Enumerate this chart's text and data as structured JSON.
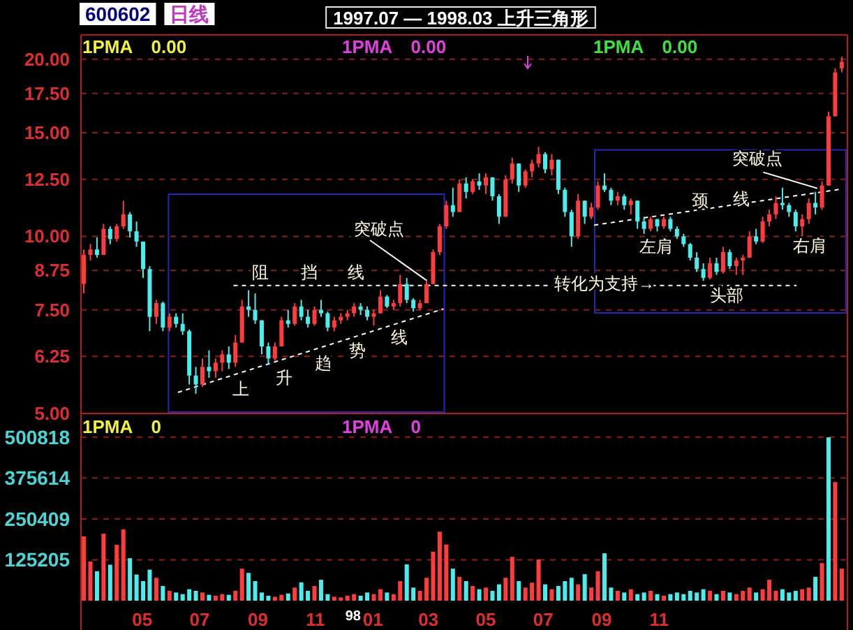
{
  "chart_data": [
    {
      "type": "candlestick",
      "title": "1997.07 — 1998.03 上升三角形",
      "x": [
        "1997-02-28",
        "1997-03-07",
        "1997-03-14",
        "1997-03-21",
        "1997-03-28",
        "1997-04-04",
        "1997-04-11",
        "1997-04-18",
        "1997-04-25",
        "1997-05-02",
        "1997-05-09",
        "1997-05-16",
        "1997-05-23",
        "1997-05-30",
        "1997-06-06",
        "1997-06-13",
        "1997-06-20",
        "1997-06-27",
        "1997-07-04",
        "1997-07-11",
        "1997-07-18",
        "1997-07-25",
        "1997-08-01",
        "1997-08-08",
        "1997-08-15",
        "1997-08-22",
        "1997-08-29",
        "1997-09-05",
        "1997-09-12",
        "1997-09-19",
        "1997-09-26",
        "1997-10-03",
        "1997-10-10",
        "1997-10-17",
        "1997-10-24",
        "1997-10-31",
        "1997-11-07",
        "1997-11-14",
        "1997-11-21",
        "1997-11-28",
        "1997-12-05",
        "1997-12-12",
        "1997-12-19",
        "1997-12-26",
        "1998-01-02",
        "1998-01-09",
        "1998-01-16",
        "1998-01-23",
        "1998-01-30",
        "1998-02-06",
        "1998-02-13",
        "1998-02-20",
        "1998-02-27",
        "1998-03-06",
        "1998-03-13",
        "1998-03-20",
        "1998-03-27",
        "1998-04-03",
        "1998-04-10",
        "1998-04-17",
        "1998-04-24",
        "1998-05-01",
        "1998-05-08",
        "1998-05-15",
        "1998-05-22",
        "1998-05-29",
        "1998-06-05",
        "1998-06-12",
        "1998-06-19",
        "1998-06-26",
        "1998-07-03",
        "1998-07-10",
        "1998-07-17",
        "1998-07-24",
        "1998-07-31",
        "1998-08-07",
        "1998-08-14",
        "1998-08-21",
        "1998-08-28",
        "1998-09-04",
        "1998-09-11",
        "1998-09-18",
        "1998-09-25",
        "1998-10-02",
        "1998-10-09",
        "1998-10-16",
        "1998-10-23",
        "1998-10-30",
        "1998-11-06",
        "1998-11-13",
        "1998-11-20",
        "1998-11-27",
        "1998-12-04",
        "1998-12-11",
        "1998-12-18",
        "1998-12-25",
        "1999-01-01",
        "1999-01-08",
        "1999-01-15",
        "1999-01-22",
        "1999-01-29",
        "1999-02-05",
        "1999-02-12",
        "1999-02-19",
        "1999-02-26",
        "1999-03-05",
        "1999-03-12",
        "1999-03-19",
        "1999-03-26",
        "1999-04-02",
        "1999-04-09",
        "1999-04-16",
        "1999-04-23",
        "1999-04-30",
        "1999-05-07",
        "1999-05-14"
      ],
      "ohlc": [
        [
          8.3,
          9.5,
          8.0,
          9.3
        ],
        [
          9.3,
          9.7,
          9.1,
          9.5
        ],
        [
          9.5,
          9.96,
          9.2,
          9.3
        ],
        [
          9.3,
          10.5,
          9.3,
          10.3
        ],
        [
          10.3,
          10.4,
          9.7,
          9.9
        ],
        [
          9.9,
          10.5,
          9.8,
          10.4
        ],
        [
          10.4,
          11.5,
          10.3,
          10.9
        ],
        [
          10.9,
          11.0,
          9.96,
          10.2
        ],
        [
          10.2,
          10.6,
          9.6,
          9.8
        ],
        [
          9.8,
          9.8,
          8.5,
          8.8
        ],
        [
          8.8,
          8.9,
          6.9,
          7.3
        ],
        [
          7.3,
          7.8,
          7.1,
          7.7
        ],
        [
          7.7,
          7.75,
          6.9,
          7.0
        ],
        [
          7.0,
          7.4,
          6.9,
          7.3
        ],
        [
          7.3,
          7.4,
          7.0,
          7.1
        ],
        [
          7.1,
          7.4,
          6.8,
          6.9
        ],
        [
          6.9,
          6.95,
          5.6,
          5.8
        ],
        [
          5.8,
          6.0,
          5.4,
          5.6
        ],
        [
          5.6,
          6.2,
          5.55,
          6.0
        ],
        [
          6.0,
          6.4,
          5.75,
          5.9
        ],
        [
          5.9,
          6.2,
          5.75,
          6.1
        ],
        [
          6.1,
          6.4,
          5.9,
          6.3
        ],
        [
          6.3,
          6.5,
          5.95,
          6.1
        ],
        [
          6.1,
          6.8,
          6.0,
          6.6
        ],
        [
          6.6,
          7.8,
          6.6,
          7.6
        ],
        [
          7.6,
          8.1,
          7.3,
          7.5
        ],
        [
          7.5,
          8.0,
          7.1,
          7.2
        ],
        [
          7.2,
          7.2,
          6.3,
          6.5
        ],
        [
          6.5,
          6.6,
          6.05,
          6.2
        ],
        [
          6.2,
          6.6,
          6.15,
          6.5
        ],
        [
          6.5,
          7.3,
          6.5,
          7.2
        ],
        [
          7.2,
          7.5,
          7.0,
          7.1
        ],
        [
          7.1,
          7.7,
          7.05,
          7.6
        ],
        [
          7.6,
          7.8,
          7.2,
          7.3
        ],
        [
          7.3,
          7.5,
          7.0,
          7.1
        ],
        [
          7.1,
          7.6,
          7.05,
          7.5
        ],
        [
          7.5,
          7.8,
          7.3,
          7.4
        ],
        [
          7.4,
          7.45,
          6.9,
          7.0
        ],
        [
          7.0,
          7.3,
          6.9,
          7.2
        ],
        [
          7.2,
          7.4,
          7.1,
          7.3
        ],
        [
          7.3,
          7.5,
          7.2,
          7.4
        ],
        [
          7.4,
          7.7,
          7.3,
          7.6
        ],
        [
          7.6,
          7.7,
          7.35,
          7.5
        ],
        [
          7.5,
          7.6,
          7.2,
          7.3
        ],
        [
          7.3,
          7.5,
          7.05,
          7.4
        ],
        [
          7.4,
          8.1,
          7.4,
          7.9
        ],
        [
          7.9,
          7.95,
          7.55,
          7.6
        ],
        [
          7.6,
          7.8,
          7.5,
          7.7
        ],
        [
          7.7,
          8.6,
          7.6,
          8.3
        ],
        [
          8.3,
          8.5,
          7.7,
          7.8
        ],
        [
          7.8,
          7.85,
          7.45,
          7.55
        ],
        [
          7.55,
          7.8,
          7.5,
          7.7
        ],
        [
          7.7,
          8.45,
          7.7,
          8.3
        ],
        [
          8.3,
          9.5,
          8.3,
          9.4
        ],
        [
          9.4,
          10.5,
          9.3,
          10.4
        ],
        [
          10.4,
          11.5,
          10.3,
          11.3
        ],
        [
          11.3,
          12.1,
          10.8,
          11.0
        ],
        [
          11.0,
          12.5,
          11.0,
          12.3
        ],
        [
          12.3,
          12.6,
          11.6,
          11.9
        ],
        [
          11.9,
          12.5,
          11.8,
          12.4
        ],
        [
          12.4,
          12.8,
          12.0,
          12.2
        ],
        [
          12.2,
          12.8,
          11.8,
          12.6
        ],
        [
          12.6,
          12.6,
          11.5,
          11.7
        ],
        [
          11.7,
          11.8,
          10.5,
          10.8
        ],
        [
          10.8,
          12.7,
          10.8,
          12.5
        ],
        [
          12.5,
          13.6,
          12.3,
          13.3
        ],
        [
          13.3,
          13.3,
          11.9,
          12.2
        ],
        [
          12.2,
          13.0,
          12.1,
          12.9
        ],
        [
          12.9,
          13.5,
          12.6,
          13.3
        ],
        [
          13.3,
          14.2,
          13.1,
          13.8
        ],
        [
          13.8,
          13.9,
          12.8,
          13.0
        ],
        [
          13.0,
          13.8,
          12.7,
          13.5
        ],
        [
          13.5,
          13.5,
          11.8,
          12.0
        ],
        [
          12.0,
          12.1,
          10.8,
          11.0
        ],
        [
          11.0,
          11.1,
          9.6,
          10.0
        ],
        [
          10.0,
          11.8,
          9.9,
          11.5
        ],
        [
          11.5,
          11.5,
          10.5,
          10.8
        ],
        [
          10.8,
          11.4,
          10.7,
          11.2
        ],
        [
          11.2,
          12.4,
          11.1,
          12.2
        ],
        [
          12.2,
          12.8,
          11.9,
          12.0
        ],
        [
          12.0,
          12.1,
          11.3,
          11.5
        ],
        [
          11.5,
          11.9,
          11.3,
          11.7
        ],
        [
          11.7,
          11.8,
          11.1,
          11.3
        ],
        [
          11.3,
          11.6,
          10.9,
          11.5
        ],
        [
          11.5,
          11.5,
          10.3,
          10.6
        ],
        [
          10.6,
          10.8,
          10.1,
          10.3
        ],
        [
          10.3,
          10.8,
          10.2,
          10.7
        ],
        [
          10.7,
          10.7,
          10.2,
          10.4
        ],
        [
          10.4,
          10.8,
          10.3,
          10.7
        ],
        [
          10.7,
          10.8,
          10.2,
          10.3
        ],
        [
          10.3,
          10.4,
          9.9,
          10.0
        ],
        [
          10.0,
          10.1,
          9.6,
          9.7
        ],
        [
          9.7,
          9.75,
          9.1,
          9.2
        ],
        [
          9.2,
          9.4,
          8.7,
          8.8
        ],
        [
          8.8,
          9.0,
          8.4,
          8.5
        ],
        [
          8.5,
          9.2,
          8.45,
          9.0
        ],
        [
          9.0,
          9.2,
          8.6,
          8.7
        ],
        [
          8.7,
          9.6,
          8.65,
          9.4
        ],
        [
          9.4,
          9.5,
          8.8,
          8.9
        ],
        [
          8.9,
          9.2,
          8.6,
          9.1
        ],
        [
          9.1,
          9.3,
          8.6,
          9.2
        ],
        [
          9.2,
          10.2,
          9.2,
          10.0
        ],
        [
          10.0,
          10.3,
          9.7,
          9.8
        ],
        [
          9.8,
          10.8,
          9.75,
          10.6
        ],
        [
          10.6,
          11.1,
          10.4,
          10.9
        ],
        [
          10.9,
          11.7,
          10.7,
          11.4
        ],
        [
          11.4,
          12.1,
          11.1,
          11.3
        ],
        [
          11.3,
          11.4,
          10.8,
          11.0
        ],
        [
          11.0,
          11.1,
          10.2,
          10.4
        ],
        [
          10.4,
          10.9,
          9.96,
          10.7
        ],
        [
          10.7,
          11.6,
          10.5,
          11.4
        ],
        [
          11.4,
          11.9,
          10.9,
          11.2
        ],
        [
          11.2,
          12.4,
          11.1,
          12.2
        ],
        [
          12.2,
          16.3,
          12.2,
          16.0
        ],
        [
          16.0,
          19.3,
          16.0,
          19.0
        ],
        [
          19.3,
          20.2,
          19.0,
          19.8
        ]
      ],
      "colors": [
        "#ff3c3c",
        "#ff3c3c",
        "#4cecec",
        "#ff3c3c",
        "#4cecec",
        "#ff3c3c",
        "#ff3c3c",
        "#4cecec",
        "#4cecec",
        "#4cecec",
        "#4cecec",
        "#ff3c3c",
        "#4cecec",
        "#ff3c3c",
        "#4cecec",
        "#4cecec",
        "#4cecec",
        "#4cecec",
        "#ff3c3c",
        "#4cecec",
        "#ff3c3c",
        "#ff3c3c",
        "#4cecec",
        "#ff3c3c",
        "#ff3c3c",
        "#4cecec",
        "#4cecec",
        "#4cecec",
        "#4cecec",
        "#ff3c3c",
        "#ff3c3c",
        "#4cecec",
        "#ff3c3c",
        "#4cecec",
        "#4cecec",
        "#ff3c3c",
        "#4cecec",
        "#4cecec",
        "#ff3c3c",
        "#ff3c3c",
        "#ff3c3c",
        "#ff3c3c",
        "#4cecec",
        "#4cecec",
        "#ff3c3c",
        "#ff3c3c",
        "#4cecec",
        "#ff3c3c",
        "#ff3c3c",
        "#4cecec",
        "#4cecec",
        "#ff3c3c",
        "#ff3c3c",
        "#ff3c3c",
        "#ff3c3c",
        "#ff3c3c",
        "#4cecec",
        "#ff3c3c",
        "#4cecec",
        "#ff3c3c",
        "#4cecec",
        "#ff3c3c",
        "#4cecec",
        "#4cecec",
        "#ff3c3c",
        "#ff3c3c",
        "#4cecec",
        "#ff3c3c",
        "#ff3c3c",
        "#ff3c3c",
        "#4cecec",
        "#ff3c3c",
        "#4cecec",
        "#4cecec",
        "#4cecec",
        "#ff3c3c",
        "#4cecec",
        "#ff3c3c",
        "#ff3c3c",
        "#4cecec",
        "#4cecec",
        "#ff3c3c",
        "#4cecec",
        "#ff3c3c",
        "#4cecec",
        "#4cecec",
        "#ff3c3c",
        "#4cecec",
        "#ff3c3c",
        "#4cecec",
        "#4cecec",
        "#4cecec",
        "#4cecec",
        "#4cecec",
        "#4cecec",
        "#ff3c3c",
        "#4cecec",
        "#ff3c3c",
        "#4cecec",
        "#ff3c3c",
        "#ff3c3c",
        "#ff3c3c",
        "#4cecec",
        "#ff3c3c",
        "#ff3c3c",
        "#ff3c3c",
        "#4cecec",
        "#4cecec",
        "#4cecec",
        "#ff3c3c",
        "#ff3c3c",
        "#4cecec",
        "#ff3c3c",
        "#ff3c3c",
        "#ff3c3c",
        "#ff3c3c"
      ],
      "series": [
        {
          "type": "line",
          "color": "#ffffff",
          "line_style": "dashed",
          "x": [
            "1997-08-06",
            "1998-07-13",
            "1998-09-03",
            "1998-10-24",
            "1999-03-27"
          ],
          "values": [
            8.25,
            8.25,
            null,
            8.25,
            8.25
          ]
        },
        {
          "type": "line",
          "color": "#ffffff",
          "line_style": "dashed",
          "x": [
            "1997-06-08",
            "1998-03-17"
          ],
          "values": [
            5.43,
            7.53
          ]
        },
        {
          "type": "line",
          "color": "#ffffff",
          "line_style": "dashed",
          "x": [
            "1998-08-24",
            "1999-05-15"
          ],
          "values": [
            10.45,
            12.04
          ]
        }
      ],
      "xlim": [
        "1997-02-25",
        "1999-05-20"
      ],
      "ylim": [
        5,
        22
      ],
      "yticks": [
        {
          "value": 5,
          "label": "5.00"
        },
        6.25,
        {
          "value": 7.5,
          "label": "7.50"
        },
        8.75,
        {
          "value": 10,
          "label": "10.00"
        },
        {
          "value": 12.5,
          "label": "12.50"
        },
        {
          "value": 15,
          "label": "15.00"
        },
        {
          "value": 17.5,
          "label": "17.50"
        },
        {
          "value": 20,
          "label": "20.00"
        }
      ],
      "log": "y",
      "grid": "y",
      "tick_labels": "y",
      "annotations": [
        "600602",
        "日线",
        "1PMA 0.00",
        "1PMA 0.00",
        "1PMA 0.00",
        "阻",
        "挡",
        "线",
        {
          "text": "突破点",
          "x": "1998-02-27",
          "y": 8.42
        },
        "上",
        "升",
        "趋",
        "势",
        "线",
        "转化为支持→",
        "颈",
        "线",
        "左肩",
        "头部",
        "右肩",
        {
          "text": "突破点",
          "x": "1999-04-18",
          "y": 12.07
        }
      ]
    },
    {
      "type": "bar",
      "x": [
        "1997-02-28",
        "1997-03-07",
        "1997-03-14",
        "1997-03-21",
        "1997-03-28",
        "1997-04-04",
        "1997-04-11",
        "1997-04-18",
        "1997-04-25",
        "1997-05-02",
        "1997-05-09",
        "1997-05-16",
        "1997-05-23",
        "1997-05-30",
        "1997-06-06",
        "1997-06-13",
        "1997-06-20",
        "1997-06-27",
        "1997-07-04",
        "1997-07-11",
        "1997-07-18",
        "1997-07-25",
        "1997-08-01",
        "1997-08-08",
        "1997-08-15",
        "1997-08-22",
        "1997-08-29",
        "1997-09-05",
        "1997-09-12",
        "1997-09-19",
        "1997-09-26",
        "1997-10-03",
        "1997-10-10",
        "1997-10-17",
        "1997-10-24",
        "1997-10-31",
        "1997-11-07",
        "1997-11-14",
        "1997-11-21",
        "1997-11-28",
        "1997-12-05",
        "1997-12-12",
        "1997-12-19",
        "1997-12-26",
        "1998-01-02",
        "1998-01-09",
        "1998-01-16",
        "1998-01-23",
        "1998-01-30",
        "1998-02-06",
        "1998-02-13",
        "1998-02-20",
        "1998-02-27",
        "1998-03-06",
        "1998-03-13",
        "1998-03-20",
        "1998-03-27",
        "1998-04-03",
        "1998-04-10",
        "1998-04-17",
        "1998-04-24",
        "1998-05-01",
        "1998-05-08",
        "1998-05-15",
        "1998-05-22",
        "1998-05-29",
        "1998-06-05",
        "1998-06-12",
        "1998-06-19",
        "1998-06-26",
        "1998-07-03",
        "1998-07-10",
        "1998-07-17",
        "1998-07-24",
        "1998-07-31",
        "1998-08-07",
        "1998-08-14",
        "1998-08-21",
        "1998-08-28",
        "1998-09-04",
        "1998-09-11",
        "1998-09-18",
        "1998-09-25",
        "1998-10-02",
        "1998-10-09",
        "1998-10-16",
        "1998-10-23",
        "1998-10-30",
        "1998-11-06",
        "1998-11-13",
        "1998-11-20",
        "1998-11-27",
        "1998-12-04",
        "1998-12-11",
        "1998-12-18",
        "1998-12-25",
        "1999-01-01",
        "1999-01-08",
        "1999-01-15",
        "1999-01-22",
        "1999-01-29",
        "1999-02-05",
        "1999-02-12",
        "1999-02-19",
        "1999-02-26",
        "1999-03-05",
        "1999-03-12",
        "1999-03-19",
        "1999-03-26",
        "1999-04-02",
        "1999-04-09",
        "1999-04-16",
        "1999-04-23",
        "1999-04-30",
        "1999-05-07",
        "1999-05-14"
      ],
      "values": [
        197000,
        120000,
        90000,
        205000,
        110000,
        171000,
        218000,
        130000,
        80000,
        60000,
        95000,
        70000,
        45000,
        30000,
        25000,
        20000,
        35000,
        30000,
        25000,
        18000,
        15000,
        20000,
        18000,
        30000,
        98000,
        85000,
        60000,
        25000,
        15000,
        12000,
        18000,
        22000,
        40000,
        56000,
        30000,
        45000,
        64000,
        20000,
        12000,
        10000,
        15000,
        20000,
        15000,
        25000,
        20000,
        35000,
        25000,
        20000,
        60000,
        111000,
        40000,
        30000,
        70000,
        150000,
        211000,
        172000,
        98000,
        73000,
        60000,
        45000,
        35000,
        40000,
        30000,
        50000,
        70000,
        134000,
        60000,
        40000,
        55000,
        126000,
        50000,
        35000,
        45000,
        60000,
        70000,
        50000,
        81000,
        40000,
        90000,
        145000,
        40000,
        30000,
        25000,
        35000,
        20000,
        25000,
        30000,
        20000,
        15000,
        20000,
        25000,
        20000,
        30000,
        25000,
        35000,
        30000,
        20000,
        30000,
        25000,
        20000,
        30000,
        40000,
        25000,
        35000,
        64000,
        30000,
        35000,
        25000,
        30000,
        35000,
        40000,
        73000,
        115000,
        500000,
        363000,
        98000
      ],
      "colors": [
        "#ff3c3c",
        "#ff3c3c",
        "#4cecec",
        "#ff3c3c",
        "#4cecec",
        "#ff3c3c",
        "#ff3c3c",
        "#4cecec",
        "#4cecec",
        "#4cecec",
        "#4cecec",
        "#ff3c3c",
        "#4cecec",
        "#ff3c3c",
        "#4cecec",
        "#4cecec",
        "#4cecec",
        "#4cecec",
        "#ff3c3c",
        "#4cecec",
        "#ff3c3c",
        "#ff3c3c",
        "#4cecec",
        "#ff3c3c",
        "#ff3c3c",
        "#4cecec",
        "#4cecec",
        "#4cecec",
        "#4cecec",
        "#ff3c3c",
        "#ff3c3c",
        "#4cecec",
        "#ff3c3c",
        "#4cecec",
        "#4cecec",
        "#ff3c3c",
        "#4cecec",
        "#4cecec",
        "#ff3c3c",
        "#ff3c3c",
        "#ff3c3c",
        "#ff3c3c",
        "#4cecec",
        "#4cecec",
        "#ff3c3c",
        "#ff3c3c",
        "#4cecec",
        "#ff3c3c",
        "#ff3c3c",
        "#4cecec",
        "#4cecec",
        "#ff3c3c",
        "#ff3c3c",
        "#ff3c3c",
        "#ff3c3c",
        "#ff3c3c",
        "#4cecec",
        "#ff3c3c",
        "#4cecec",
        "#ff3c3c",
        "#4cecec",
        "#ff3c3c",
        "#4cecec",
        "#4cecec",
        "#ff3c3c",
        "#ff3c3c",
        "#4cecec",
        "#ff3c3c",
        "#ff3c3c",
        "#ff3c3c",
        "#4cecec",
        "#ff3c3c",
        "#4cecec",
        "#4cecec",
        "#4cecec",
        "#ff3c3c",
        "#4cecec",
        "#ff3c3c",
        "#ff3c3c",
        "#4cecec",
        "#4cecec",
        "#ff3c3c",
        "#4cecec",
        "#ff3c3c",
        "#4cecec",
        "#4cecec",
        "#ff3c3c",
        "#4cecec",
        "#ff3c3c",
        "#4cecec",
        "#4cecec",
        "#4cecec",
        "#4cecec",
        "#4cecec",
        "#4cecec",
        "#ff3c3c",
        "#4cecec",
        "#ff3c3c",
        "#4cecec",
        "#ff3c3c",
        "#ff3c3c",
        "#ff3c3c",
        "#4cecec",
        "#ff3c3c",
        "#ff3c3c",
        "#ff3c3c",
        "#4cecec",
        "#4cecec",
        "#4cecec",
        "#ff3c3c",
        "#ff3c3c",
        "#4cecec",
        "#ff3c3c",
        "#4cecec",
        "#ff3c3c",
        "#ff3c3c"
      ],
      "xlim": [
        "1997-02-25",
        "1999-05-20"
      ],
      "xticks": [
        {
          "value": "1997-05-01",
          "label": "05"
        },
        {
          "value": "1997-07-01",
          "label": "07"
        },
        {
          "value": "1997-09-01",
          "label": "09"
        },
        {
          "value": "1997-11-01",
          "label": "11"
        },
        {
          "value": "1997-12-11",
          "label": "98"
        },
        {
          "value": "1998-01-01",
          "label": "01"
        },
        {
          "value": "1998-03-01",
          "label": "03"
        },
        {
          "value": "1998-05-01",
          "label": "05"
        },
        {
          "value": "1998-07-01",
          "label": "07"
        },
        {
          "value": "1998-09-01",
          "label": "09"
        },
        {
          "value": "1998-11-01",
          "label": "11"
        }
      ],
      "ylim": [
        0,
        573000
      ],
      "yticks": [
        125205,
        250409,
        375614,
        500818
      ],
      "grid": "y",
      "annotations": [
        "1PMA 0",
        "1PMA 0"
      ]
    }
  ]
}
